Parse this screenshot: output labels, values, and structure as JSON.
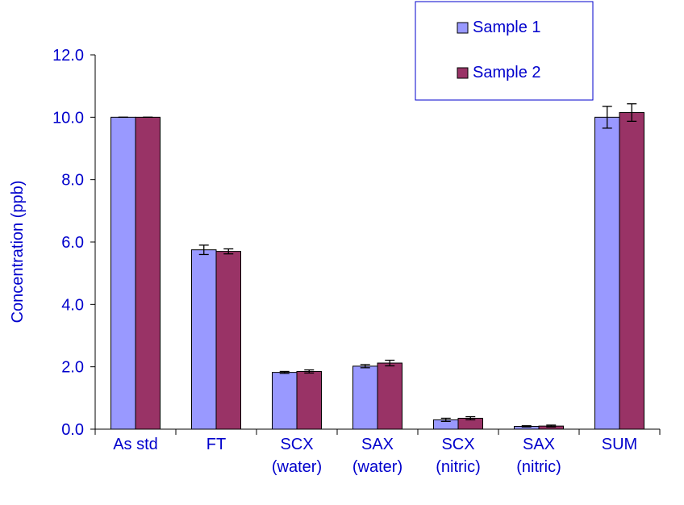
{
  "chart_data": {
    "type": "bar",
    "title": "",
    "xlabel": "",
    "ylabel": "Concentration (ppb)",
    "ylim": [
      0,
      12
    ],
    "yticks": [
      "0.0",
      "2.0",
      "4.0",
      "6.0",
      "8.0",
      "10.0",
      "12.0"
    ],
    "grid": false,
    "legend_position": "top-right",
    "categories": [
      [
        "As std"
      ],
      [
        "FT"
      ],
      [
        "SCX",
        "(water)"
      ],
      [
        "SAX",
        "(water)"
      ],
      [
        "SCX",
        "(nitric)"
      ],
      [
        "SAX",
        "(nitric)"
      ],
      [
        "SUM"
      ]
    ],
    "series": [
      {
        "name": "Sample 1",
        "color": "#9999ff",
        "values": [
          10.0,
          5.75,
          1.82,
          2.02,
          0.3,
          0.09,
          10.0
        ],
        "errors": [
          0.0,
          0.15,
          0.03,
          0.05,
          0.05,
          0.02,
          0.35
        ]
      },
      {
        "name": "Sample 2",
        "color": "#993366",
        "values": [
          10.0,
          5.7,
          1.85,
          2.12,
          0.35,
          0.1,
          10.15
        ],
        "errors": [
          0.0,
          0.08,
          0.05,
          0.09,
          0.05,
          0.03,
          0.28
        ]
      }
    ],
    "text_color": "#0000cc",
    "axis_color": "#000000"
  }
}
